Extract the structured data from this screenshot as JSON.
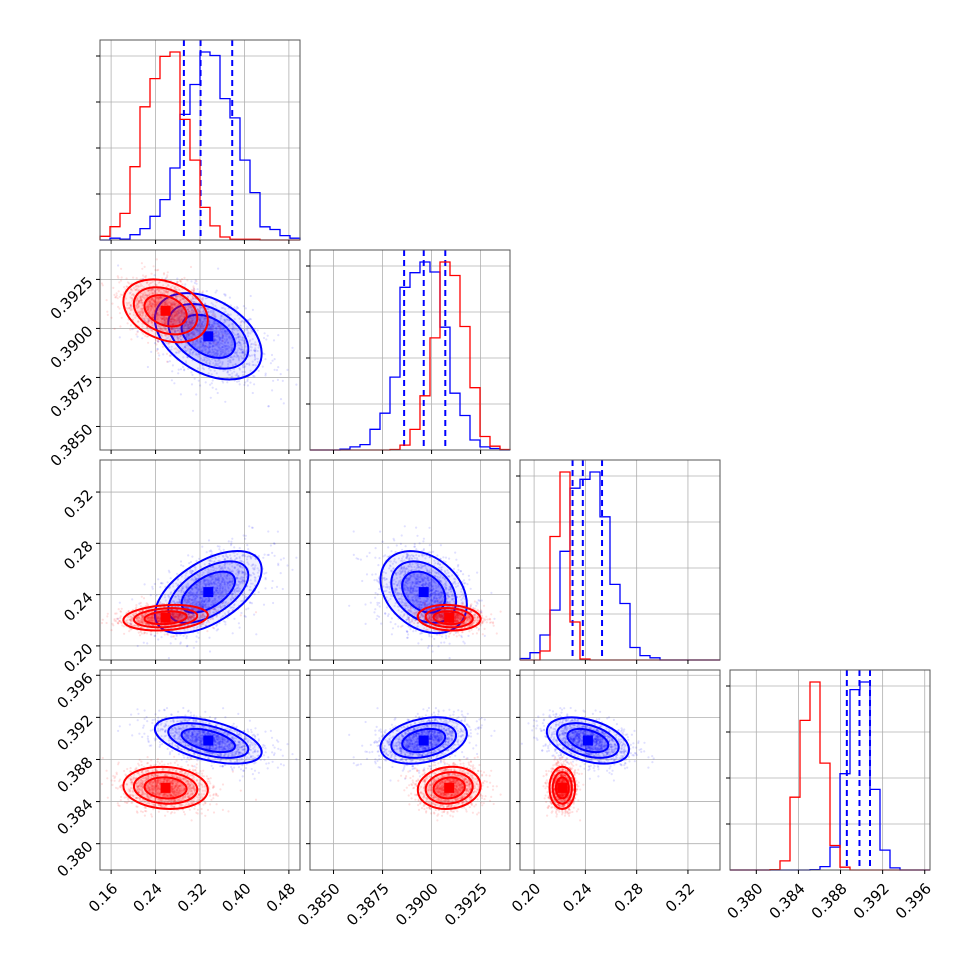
{
  "colors": {
    "series_a": "#0000ff",
    "series_b": "#ff0000",
    "grid": "#b0b0b0",
    "frame": "#000000"
  },
  "chart_data": {
    "type": "corner",
    "grid": true,
    "params": [
      {
        "range": [
          0.14,
          0.5
        ],
        "ticks": [
          0.16,
          0.24,
          0.32,
          0.4,
          0.48
        ],
        "tick_labels": [
          "0.16",
          "0.24",
          "0.32",
          "0.40",
          "0.48"
        ]
      },
      {
        "range": [
          0.3838,
          0.394
        ],
        "ticks": [
          0.385,
          0.3875,
          0.39,
          0.3925
        ],
        "tick_labels": [
          "0.3850",
          "0.3875",
          "0.3900",
          "0.3925"
        ]
      },
      {
        "range": [
          0.189,
          0.345
        ],
        "ticks": [
          0.2,
          0.24,
          0.28,
          0.32
        ],
        "tick_labels": [
          "0.20",
          "0.24",
          "0.28",
          "0.32"
        ]
      },
      {
        "range": [
          0.3775,
          0.3965
        ],
        "ticks": [
          0.38,
          0.384,
          0.388,
          0.392,
          0.396
        ],
        "tick_labels": [
          "0.380",
          "0.384",
          "0.388",
          "0.392",
          "0.396"
        ]
      }
    ],
    "series": [
      {
        "color": "#0000ff",
        "means": [
          0.335,
          0.3896,
          0.242,
          0.3898
        ],
        "sds": [
          0.048,
          0.0011,
          0.016,
          0.0011
        ],
        "corr": [
          [
            1,
            -0.4,
            0.55,
            -0.5
          ],
          [
            -0.4,
            1,
            -0.3,
            0.3
          ],
          [
            0.55,
            -0.3,
            1,
            -0.4
          ],
          [
            -0.5,
            0.3,
            -0.4,
            1
          ]
        ],
        "quantiles": [
          [
            0.291,
            0.321,
            0.378
          ],
          [
            0.3886,
            0.3896,
            0.3907
          ],
          [
            0.23,
            0.238,
            0.253
          ],
          [
            0.3886,
            0.3898,
            0.3908
          ]
        ]
      },
      {
        "color": "#ff0000",
        "means": [
          0.258,
          0.3909,
          0.222,
          0.3853
        ],
        "sds": [
          0.038,
          0.0008,
          0.005,
          0.001
        ],
        "corr": [
          [
            1,
            -0.3,
            0.2,
            -0.1
          ],
          [
            -0.3,
            1,
            -0.1,
            0.1
          ],
          [
            0.2,
            -0.1,
            1,
            0.0
          ],
          [
            -0.1,
            0.1,
            0.0,
            1
          ]
        ],
        "quantiles": []
      }
    ]
  }
}
